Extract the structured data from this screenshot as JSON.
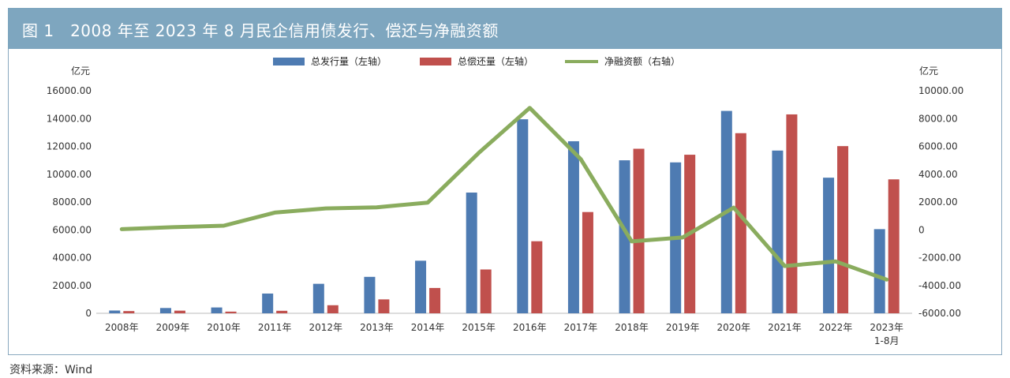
{
  "header": {
    "title": "图 1　2008 年至 2023 年 8 月民企信用债发行、偿还与净融资额"
  },
  "source": "资料来源：Wind",
  "colors": {
    "issuance": "#4e7bb2",
    "repayment": "#c0504d",
    "net": "#8aac5e",
    "header": "#7ea6bf"
  },
  "chart_data": {
    "type": "bar",
    "categories": [
      "2008年",
      "2009年",
      "2010年",
      "2011年",
      "2012年",
      "2013年",
      "2014年",
      "2015年",
      "2016年",
      "2017年",
      "2018年",
      "2019年",
      "2020年",
      "2021年",
      "2022年",
      "2023年\n1-8月"
    ],
    "series": [
      {
        "name": "总发行量（左轴）",
        "type": "bar",
        "axis": "left",
        "values": [
          200,
          380,
          420,
          1420,
          2120,
          2620,
          3780,
          8680,
          13950,
          12370,
          11000,
          10850,
          14550,
          11700,
          9750,
          6050
        ]
      },
      {
        "name": "总偿还量（左轴）",
        "type": "bar",
        "axis": "left",
        "values": [
          160,
          190,
          120,
          180,
          580,
          1000,
          1820,
          3150,
          5180,
          7280,
          11830,
          11400,
          12950,
          14300,
          12020,
          9630
        ]
      },
      {
        "name": "净融资额（右轴）",
        "type": "line",
        "axis": "right",
        "values": [
          50,
          190,
          300,
          1240,
          1540,
          1620,
          1960,
          5530,
          8770,
          5090,
          -830,
          -550,
          1600,
          -2600,
          -2270,
          -3580
        ]
      }
    ],
    "left_axis": {
      "label": "亿元",
      "ylim": [
        0,
        16000
      ],
      "ticks": [
        "0",
        "2000.00",
        "4000.00",
        "6000.00",
        "8000.00",
        "10000.00",
        "12000.00",
        "14000.00",
        "16000.00"
      ]
    },
    "right_axis": {
      "label": "亿元",
      "ylim": [
        -6000,
        10000
      ],
      "ticks": [
        "-6000.00",
        "-4000.00",
        "-2000.00",
        "0",
        "2000.00",
        "4000.00",
        "6000.00",
        "8000.00",
        "10000.00"
      ]
    },
    "legend": [
      "总发行量（左轴）",
      "总偿还量（左轴）",
      "净融资额（右轴）"
    ],
    "legend_position": "top-center"
  }
}
